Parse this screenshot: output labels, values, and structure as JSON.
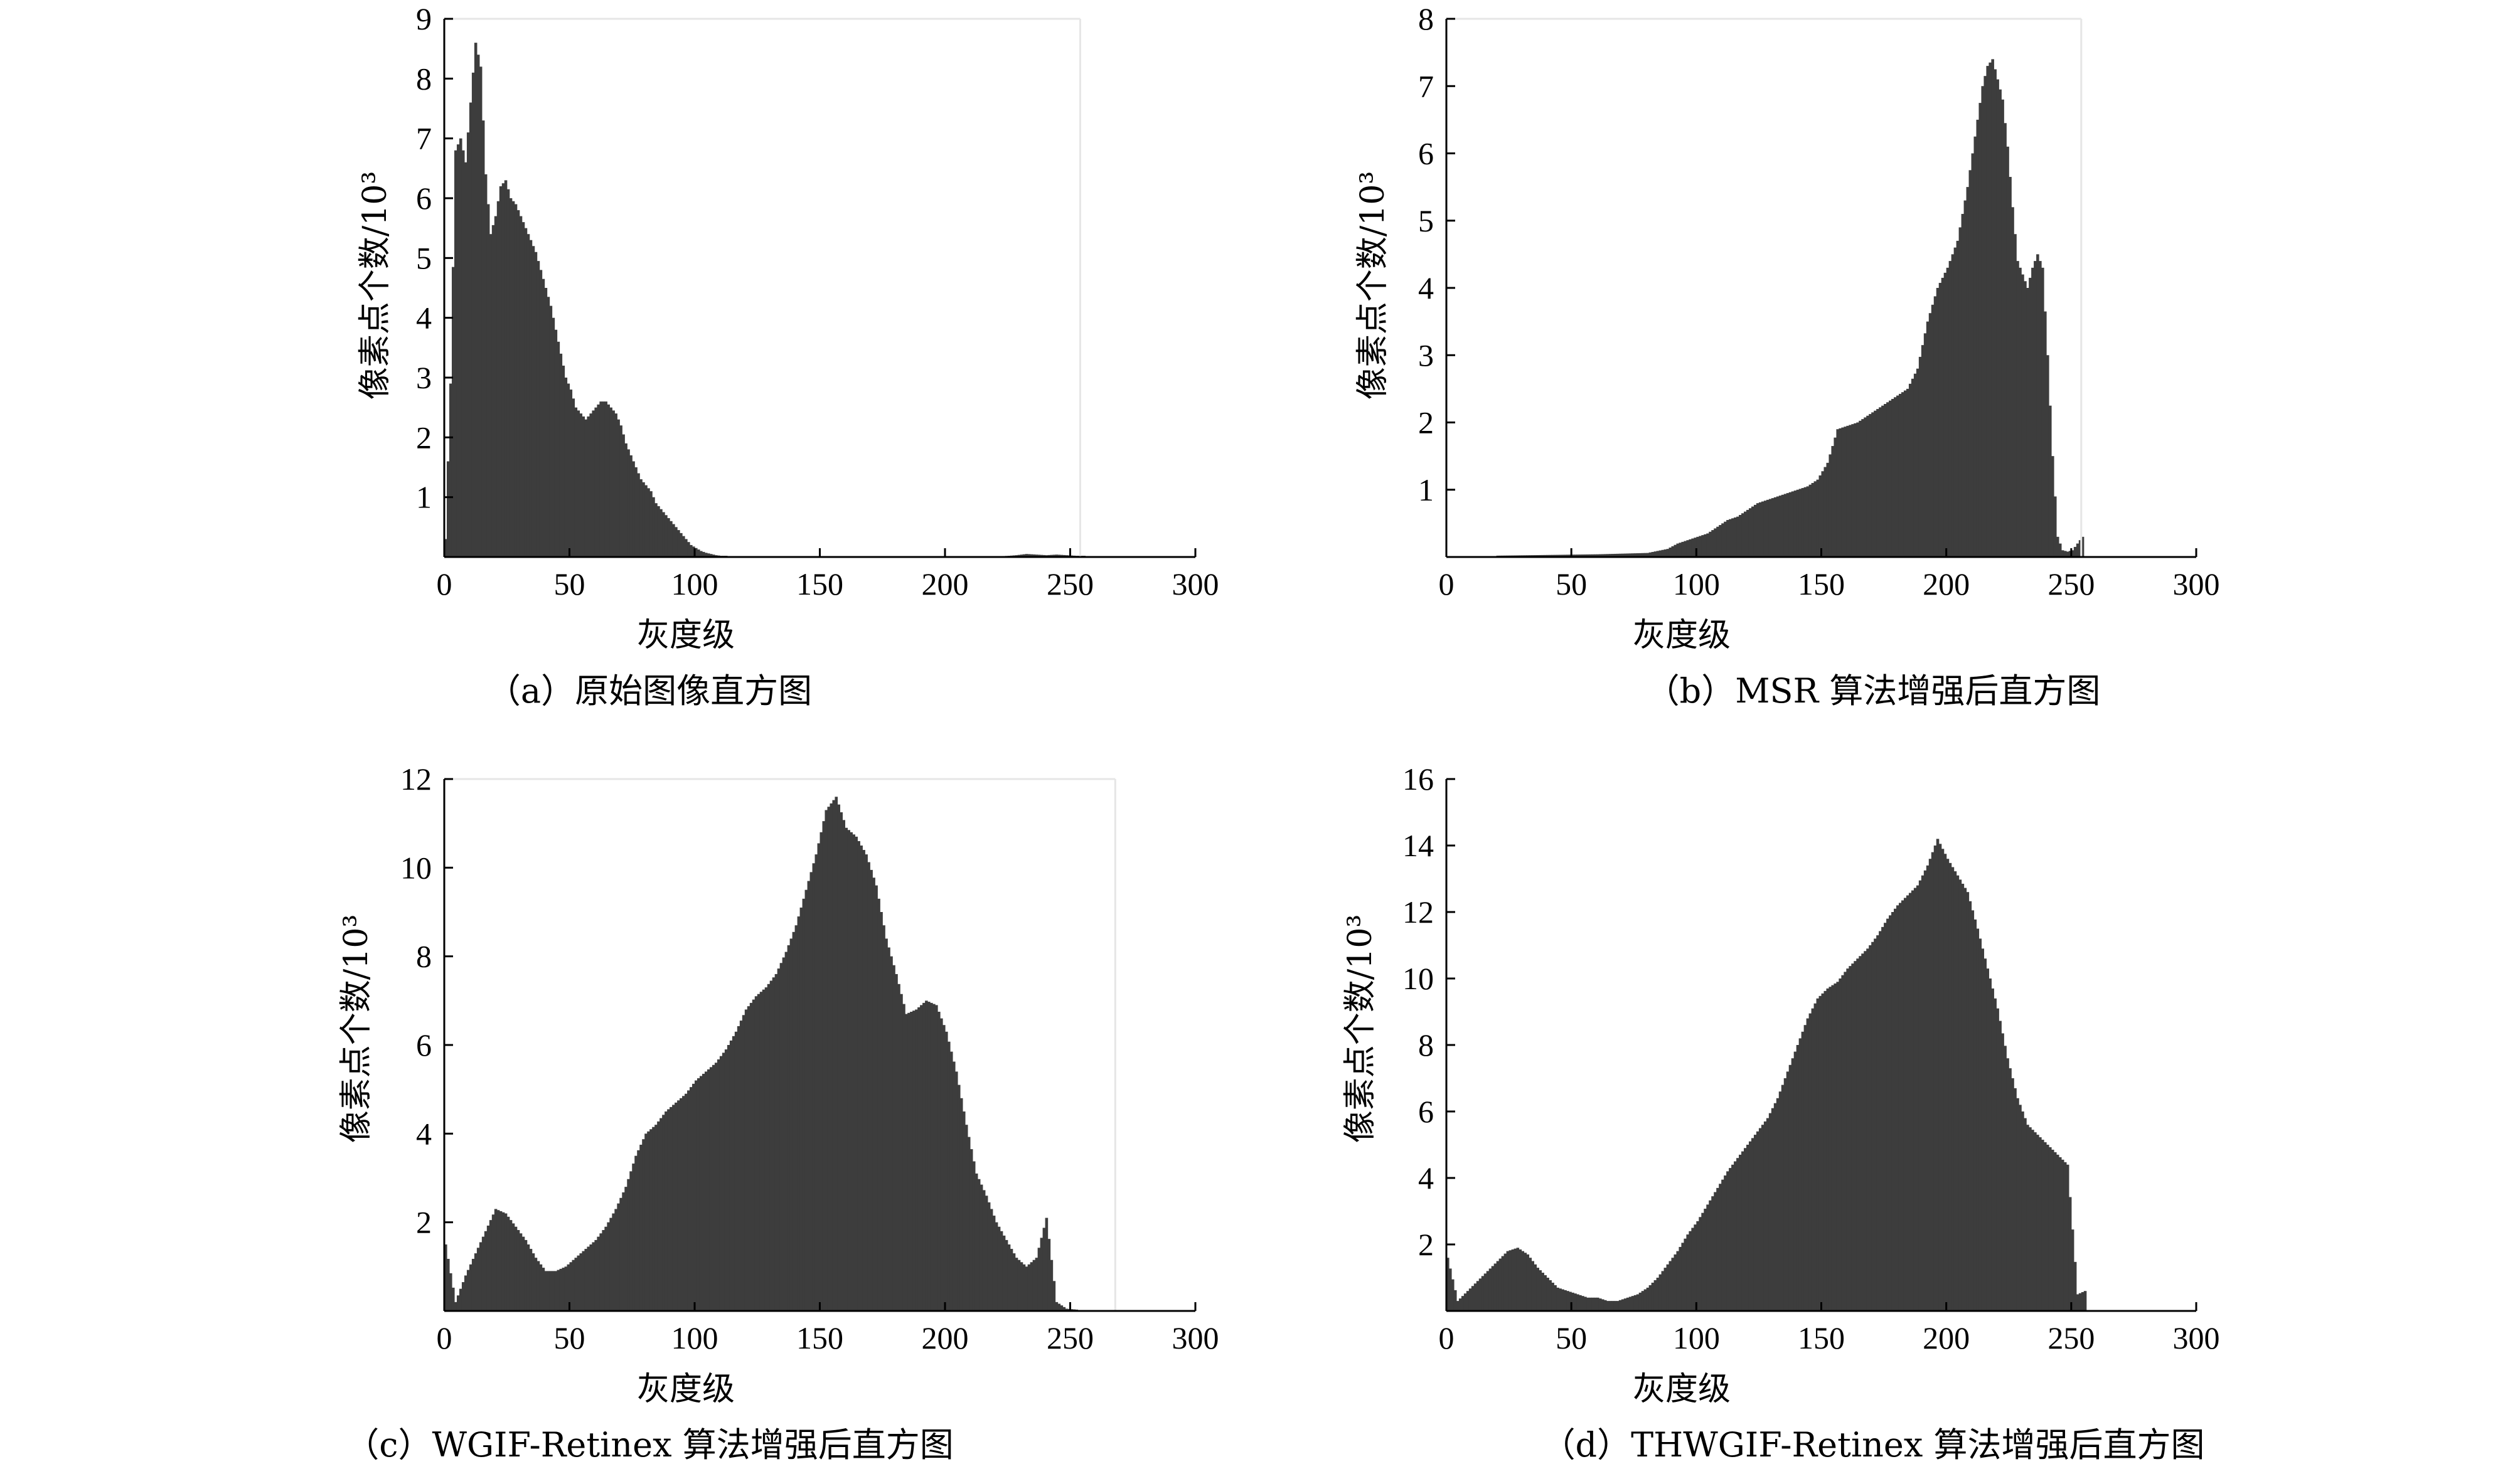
{
  "chart_data": [
    {
      "id": "a",
      "type": "bar",
      "caption": "（a）原始图像直方图",
      "xlabel": "灰度级",
      "ylabel": "像素点个数/10³",
      "xlim": [
        0,
        300
      ],
      "ylim": [
        0,
        9
      ],
      "xticks": [
        0,
        50,
        100,
        150,
        200,
        250,
        300
      ],
      "yticks": [
        1,
        2,
        3,
        4,
        5,
        6,
        7,
        8,
        9
      ],
      "x": [
        0,
        2,
        4,
        6,
        8,
        10,
        12,
        14,
        16,
        18,
        20,
        22,
        24,
        26,
        28,
        30,
        32,
        34,
        36,
        38,
        40,
        42,
        44,
        46,
        48,
        50,
        52,
        54,
        56,
        58,
        60,
        62,
        64,
        66,
        68,
        70,
        72,
        74,
        76,
        78,
        80,
        82,
        84,
        86,
        88,
        90,
        92,
        94,
        96,
        98,
        100,
        102,
        104,
        106,
        108,
        110,
        112,
        114,
        116,
        118,
        120,
        122,
        124,
        126,
        128,
        130,
        135,
        140,
        150,
        160,
        170,
        180,
        190,
        200,
        210,
        220,
        225,
        228,
        232,
        236,
        240,
        244,
        248,
        252,
        255
      ],
      "values": [
        0.3,
        2.9,
        6.8,
        7.0,
        6.6,
        7.6,
        8.6,
        8.2,
        6.4,
        5.4,
        5.7,
        6.2,
        6.3,
        6.0,
        5.9,
        5.7,
        5.5,
        5.3,
        5.1,
        4.8,
        4.5,
        4.2,
        3.8,
        3.4,
        3.0,
        2.8,
        2.5,
        2.4,
        2.3,
        2.4,
        2.5,
        2.6,
        2.6,
        2.5,
        2.4,
        2.2,
        1.9,
        1.7,
        1.5,
        1.3,
        1.2,
        1.1,
        0.9,
        0.8,
        0.7,
        0.6,
        0.5,
        0.4,
        0.3,
        0.2,
        0.15,
        0.1,
        0.07,
        0.05,
        0.03,
        0.02,
        0.02,
        0.01,
        0.01,
        0.01,
        0.01,
        0.01,
        0.01,
        0.01,
        0.01,
        0.01,
        0.01,
        0.01,
        0.01,
        0.01,
        0.01,
        0.01,
        0.01,
        0.01,
        0.01,
        0.01,
        0.02,
        0.03,
        0.05,
        0.04,
        0.03,
        0.04,
        0.03,
        0.02,
        0.02
      ],
      "frame_right": 254
    },
    {
      "id": "b",
      "type": "bar",
      "caption": "（b）MSR 算法增强后直方图",
      "xlabel": "灰度级",
      "ylabel": "像素点个数/10³",
      "xlim": [
        0,
        300
      ],
      "ylim": [
        0,
        8
      ],
      "xticks": [
        0,
        50,
        100,
        150,
        200,
        250,
        300
      ],
      "yticks": [
        1,
        2,
        3,
        4,
        5,
        6,
        7,
        8
      ],
      "x": [
        20,
        40,
        60,
        80,
        88,
        92,
        96,
        100,
        104,
        108,
        112,
        116,
        120,
        124,
        128,
        132,
        136,
        140,
        144,
        148,
        152,
        156,
        160,
        164,
        168,
        172,
        176,
        180,
        184,
        188,
        192,
        196,
        200,
        204,
        208,
        212,
        214,
        216,
        218,
        220,
        222,
        224,
        226,
        228,
        230,
        232,
        234,
        236,
        238,
        240,
        242,
        244,
        246,
        248,
        250,
        252,
        254
      ],
      "values": [
        0.02,
        0.03,
        0.04,
        0.06,
        0.12,
        0.2,
        0.25,
        0.3,
        0.35,
        0.45,
        0.55,
        0.6,
        0.7,
        0.8,
        0.85,
        0.9,
        0.95,
        1.0,
        1.05,
        1.15,
        1.4,
        1.9,
        1.95,
        2.0,
        2.1,
        2.2,
        2.3,
        2.4,
        2.5,
        2.8,
        3.5,
        4.0,
        4.3,
        4.7,
        5.5,
        6.5,
        7.0,
        7.3,
        7.4,
        7.1,
        6.8,
        6.1,
        5.2,
        4.4,
        4.2,
        4.0,
        4.3,
        4.5,
        4.3,
        3.0,
        1.5,
        0.3,
        0.1,
        0.08,
        0.1,
        0.2,
        0.3
      ],
      "frame_right": 254
    },
    {
      "id": "c",
      "type": "bar",
      "caption": "（c）WGIF-Retinex 算法增强后直方图",
      "xlabel": "灰度级",
      "ylabel": "像素点个数/10³",
      "xlim": [
        0,
        300
      ],
      "ylim": [
        0,
        12
      ],
      "xticks": [
        0,
        50,
        100,
        150,
        200,
        250,
        300
      ],
      "yticks": [
        2,
        4,
        6,
        8,
        10,
        12
      ],
      "x": [
        0,
        4,
        8,
        12,
        16,
        20,
        24,
        28,
        32,
        36,
        40,
        44,
        48,
        52,
        56,
        60,
        64,
        68,
        72,
        76,
        80,
        84,
        88,
        92,
        96,
        100,
        104,
        108,
        112,
        116,
        120,
        124,
        128,
        132,
        136,
        140,
        144,
        148,
        152,
        156,
        160,
        164,
        168,
        172,
        176,
        180,
        184,
        188,
        192,
        196,
        200,
        204,
        208,
        212,
        216,
        220,
        224,
        228,
        232,
        236,
        240,
        244,
        248,
        252
      ],
      "values": [
        1.5,
        0.2,
        0.8,
        1.3,
        1.8,
        2.3,
        2.2,
        1.9,
        1.6,
        1.2,
        0.9,
        0.9,
        1.0,
        1.2,
        1.4,
        1.6,
        1.9,
        2.3,
        2.8,
        3.5,
        4.0,
        4.2,
        4.5,
        4.7,
        4.9,
        5.2,
        5.4,
        5.6,
        5.9,
        6.3,
        6.8,
        7.1,
        7.3,
        7.6,
        8.1,
        8.7,
        9.5,
        10.3,
        11.3,
        11.6,
        10.9,
        10.7,
        10.3,
        9.6,
        8.4,
        7.6,
        6.7,
        6.8,
        7.0,
        6.9,
        6.3,
        5.4,
        4.2,
        3.1,
        2.6,
        2.0,
        1.6,
        1.2,
        1.0,
        1.2,
        2.1,
        0.2,
        0.05,
        0.03
      ],
      "frame_right": 268
    },
    {
      "id": "d",
      "type": "bar",
      "caption": "（d）THWGIF-Retinex 算法增强后直方图",
      "xlabel": "灰度级",
      "ylabel": "像素点个数/10³",
      "xlim": [
        0,
        300
      ],
      "ylim": [
        0,
        16
      ],
      "xticks": [
        0,
        50,
        100,
        150,
        200,
        250,
        300
      ],
      "yticks": [
        2,
        4,
        6,
        8,
        10,
        12,
        14,
        16
      ],
      "x": [
        0,
        4,
        8,
        12,
        16,
        20,
        24,
        28,
        32,
        36,
        40,
        44,
        48,
        52,
        56,
        60,
        64,
        68,
        72,
        76,
        80,
        84,
        88,
        92,
        96,
        100,
        104,
        108,
        112,
        116,
        120,
        124,
        128,
        132,
        136,
        140,
        144,
        148,
        152,
        156,
        160,
        164,
        168,
        172,
        176,
        180,
        184,
        188,
        192,
        196,
        200,
        204,
        208,
        212,
        216,
        220,
        224,
        228,
        232,
        236,
        240,
        244,
        248,
        252,
        255
      ],
      "values": [
        1.6,
        0.3,
        0.6,
        0.9,
        1.2,
        1.5,
        1.8,
        1.9,
        1.7,
        1.3,
        1.0,
        0.7,
        0.6,
        0.5,
        0.4,
        0.4,
        0.3,
        0.3,
        0.4,
        0.5,
        0.7,
        1.0,
        1.4,
        1.8,
        2.3,
        2.7,
        3.2,
        3.7,
        4.2,
        4.6,
        5.0,
        5.4,
        5.8,
        6.4,
        7.2,
        8.0,
        8.8,
        9.4,
        9.7,
        9.9,
        10.3,
        10.6,
        10.9,
        11.3,
        11.8,
        12.2,
        12.5,
        12.8,
        13.4,
        14.2,
        13.6,
        13.1,
        12.6,
        11.5,
        10.3,
        9.1,
        7.6,
        6.4,
        5.6,
        5.3,
        5.0,
        4.7,
        4.4,
        0.5,
        0.6
      ],
      "frame_right": null
    }
  ]
}
